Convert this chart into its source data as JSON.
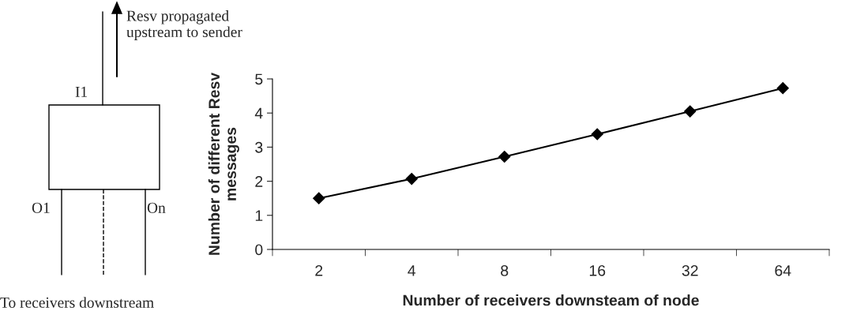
{
  "chart_data": [
    {
      "type": "other",
      "annotations": [
        "Resv propagated\nupstream to sender",
        "I1",
        "O1",
        "On",
        "To receivers downstream"
      ]
    },
    {
      "type": "line",
      "xlabel": "Number of receivers downsteam of node",
      "ylabel": "Number of different Resv\nmessages",
      "categories": [
        "2",
        "4",
        "8",
        "16",
        "32",
        "64"
      ],
      "series": [
        {
          "color": "#000000",
          "values": [
            1.5,
            2.07,
            2.72,
            3.38,
            4.05,
            4.73
          ]
        }
      ],
      "ylim": [
        0,
        5
      ],
      "yticks": [
        0,
        1,
        2,
        3,
        4,
        5
      ],
      "grid": false,
      "marker": "diamond",
      "line_style": "solid"
    }
  ]
}
